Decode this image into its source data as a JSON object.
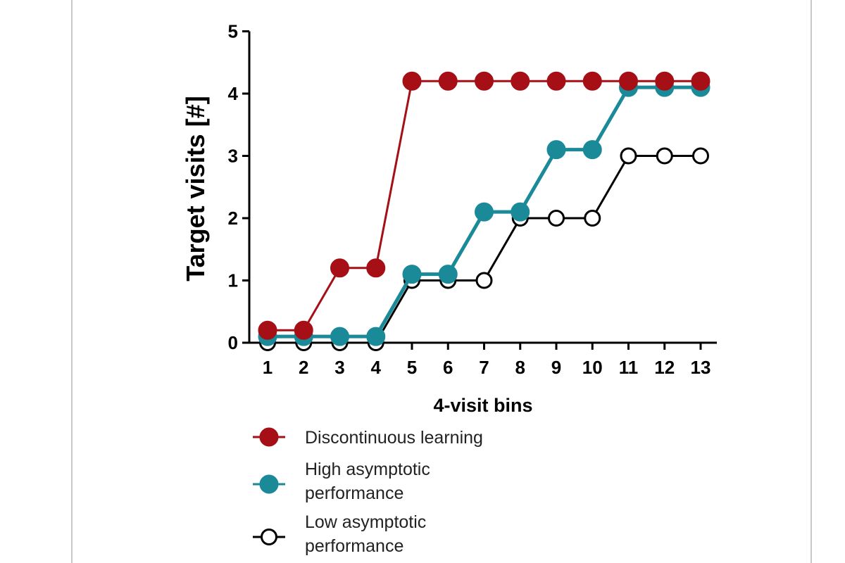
{
  "chart_data": {
    "type": "line",
    "title": "",
    "xlabel": "4-visit bins",
    "ylabel": "Target visits [#]",
    "x": [
      1,
      2,
      3,
      4,
      5,
      6,
      7,
      8,
      9,
      10,
      11,
      12,
      13
    ],
    "xticks": [
      "1",
      "2",
      "3",
      "4",
      "5",
      "6",
      "7",
      "8",
      "9",
      "10",
      "11",
      "12",
      "13"
    ],
    "yticks": [
      "0",
      "1",
      "2",
      "3",
      "4",
      "5"
    ],
    "ylim": [
      0,
      5
    ],
    "xlim": [
      1,
      13
    ],
    "grid": false,
    "legend_position": "bottom",
    "series": [
      {
        "name": "Discontinuous learning",
        "color": "#a50f15",
        "marker": "filled-circle",
        "values": [
          0.2,
          0.2,
          1.2,
          1.2,
          4.2,
          4.2,
          4.2,
          4.2,
          4.2,
          4.2,
          4.2,
          4.2,
          4.2
        ]
      },
      {
        "name": "High asymptotic performance",
        "color": "#1a8a99",
        "marker": "filled-circle",
        "values": [
          0.1,
          0.1,
          0.1,
          0.1,
          1.1,
          1.1,
          2.1,
          2.1,
          3.1,
          3.1,
          4.1,
          4.1,
          4.1
        ]
      },
      {
        "name": "Low asymptotic performance",
        "color": "#000000",
        "marker": "open-circle",
        "values": [
          0,
          0,
          0,
          0,
          1,
          1,
          1,
          2,
          2,
          2,
          3,
          3,
          3
        ]
      }
    ]
  },
  "legend": {
    "items": [
      {
        "lines": [
          "Discontinuous learning"
        ]
      },
      {
        "lines": [
          "High asymptotic",
          "performance"
        ]
      },
      {
        "lines": [
          "Low asymptotic",
          "performance"
        ]
      }
    ]
  }
}
